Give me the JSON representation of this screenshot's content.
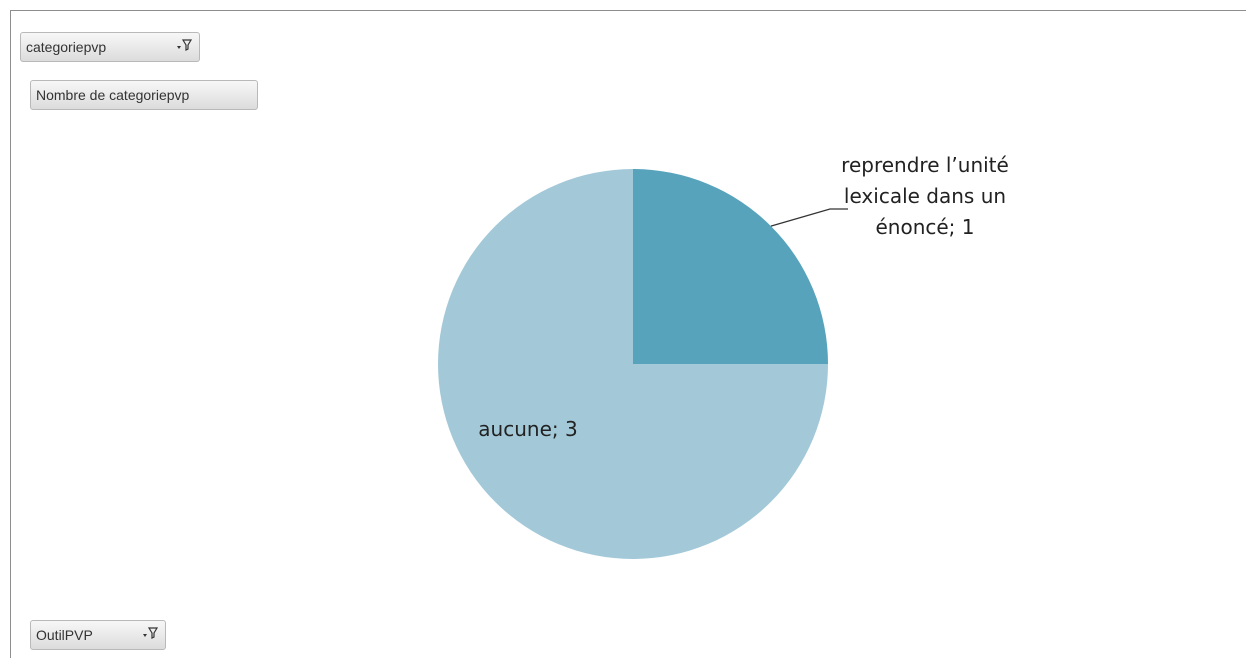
{
  "pivot_fields": {
    "filter_field": "categoriepvp",
    "value_field": "Nombre de categoriepvp",
    "axis_field": "OutilPVP"
  },
  "icons": {
    "filter_field": "filter-dropdown-icon",
    "axis_field": "filter-dropdown-icon"
  },
  "colors": {
    "slice_primary": "#a3c9d9",
    "slice_secondary": "#56a3bb"
  },
  "chart_data": {
    "type": "pie",
    "title": "",
    "start_angle_deg": 0,
    "slices": [
      {
        "label": "reprendre l’unité lexicale dans un énoncé",
        "value": 1,
        "color": "#56a3bb",
        "data_label_lines": [
          "reprendre l’unité",
          "lexicale dans un",
          "énoncé; 1"
        ]
      },
      {
        "label": "aucune",
        "value": 3,
        "color": "#a3c9d9",
        "data_label_lines": [
          "aucune; 3"
        ]
      }
    ]
  }
}
